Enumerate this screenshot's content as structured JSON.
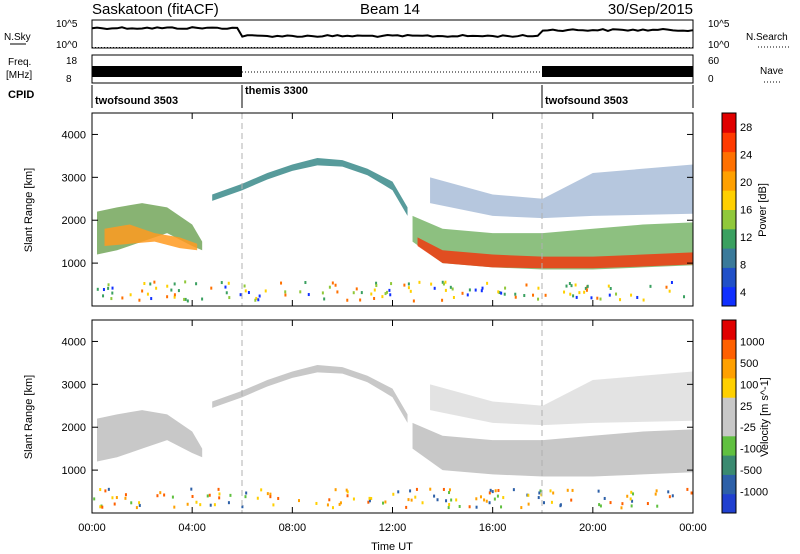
{
  "header": {
    "station": "Saskatoon (fitACF)",
    "beam": "Beam 14",
    "date": "30/Sep/2015"
  },
  "noise_panel": {
    "left_label": "N.Sky",
    "right_label": "N.Search",
    "left_ticks": [
      "10^5",
      "10^0"
    ],
    "right_ticks": [
      "10^5",
      "10^0"
    ]
  },
  "freq_panel": {
    "left_label_line1": "Freq.",
    "left_label_line2": "[MHz]",
    "right_label": "Nave",
    "left_ticks": [
      "18",
      "8"
    ],
    "right_ticks": [
      "60",
      "0"
    ]
  },
  "cpid": {
    "label": "CPID",
    "segments": [
      {
        "name": "twofsound 3503",
        "start_hour": 0,
        "end_hour": 6
      },
      {
        "name": "themis 3300",
        "start_hour": 6,
        "end_hour": 18
      },
      {
        "name": "twofsound 3503",
        "start_hour": 18,
        "end_hour": 24
      }
    ]
  },
  "x_axis": {
    "label": "Time UT",
    "ticks": [
      "00:00",
      "04:00",
      "08:00",
      "12:00",
      "16:00",
      "20:00",
      "00:00"
    ]
  },
  "chart_data": [
    {
      "type": "heatmap",
      "title": "",
      "ylabel": "Slant Range [km]",
      "yticks": [
        1000,
        2000,
        3000,
        4000
      ],
      "ylim": [
        0,
        4500
      ],
      "xlim_hours": [
        0,
        24
      ],
      "colorbar": {
        "label": "Power [dB]",
        "ticks": [
          4,
          8,
          12,
          16,
          20,
          24,
          28
        ],
        "colors": [
          "#1030ff",
          "#2050c8",
          "#3a7a9a",
          "#3aa060",
          "#90c83a",
          "#ffd000",
          "#ffa000",
          "#ff7000",
          "#ff3a00",
          "#e00000"
        ]
      },
      "echo_regions": [
        {
          "name": "early band",
          "start_hour": 0.2,
          "end_hour": 4.5,
          "range_km": [
            1200,
            2600
          ],
          "power_db": 14
        },
        {
          "name": "arc",
          "start_hour": 4.5,
          "end_hour": 12.8,
          "range_km": [
            2400,
            3500
          ],
          "power_db": 10
        },
        {
          "name": "evening band",
          "start_hour": 12.8,
          "end_hour": 24,
          "range_km": [
            900,
            2000
          ],
          "power_db": 24
        },
        {
          "name": "upper scatter",
          "start_hour": 13.5,
          "end_hour": 24,
          "range_km": [
            2000,
            3300
          ],
          "power_db": 8
        }
      ]
    },
    {
      "type": "heatmap",
      "title": "",
      "ylabel": "Slant Range [km]",
      "yticks": [
        1000,
        2000,
        3000,
        4000
      ],
      "ylim": [
        0,
        4500
      ],
      "xlim_hours": [
        0,
        24
      ],
      "colorbar": {
        "label": "Velocity [m s^-1]",
        "ticks": [
          1000,
          500,
          100,
          25,
          -25,
          -100,
          -500,
          -1000
        ],
        "colors": [
          "#2040d0",
          "#2d60a8",
          "#3a8a70",
          "#60c040",
          "#c8c8c8",
          "#c8c8c8",
          "#ffd000",
          "#ffa000",
          "#ff6000",
          "#e00000"
        ]
      },
      "echo_regions": [
        {
          "name": "early band",
          "start_hour": 0.2,
          "end_hour": 4.5,
          "range_km": [
            1200,
            2600
          ],
          "velocity": 0
        },
        {
          "name": "arc",
          "start_hour": 4.5,
          "end_hour": 12.8,
          "range_km": [
            2400,
            3500
          ],
          "velocity": 0
        },
        {
          "name": "evening band",
          "start_hour": 12.8,
          "end_hour": 24,
          "range_km": [
            900,
            2000
          ],
          "velocity": 0
        }
      ]
    }
  ],
  "colors": {
    "gray_echo": "#c8c8c8",
    "axis": "#000000",
    "dashed_line": "#b0b0b0"
  }
}
